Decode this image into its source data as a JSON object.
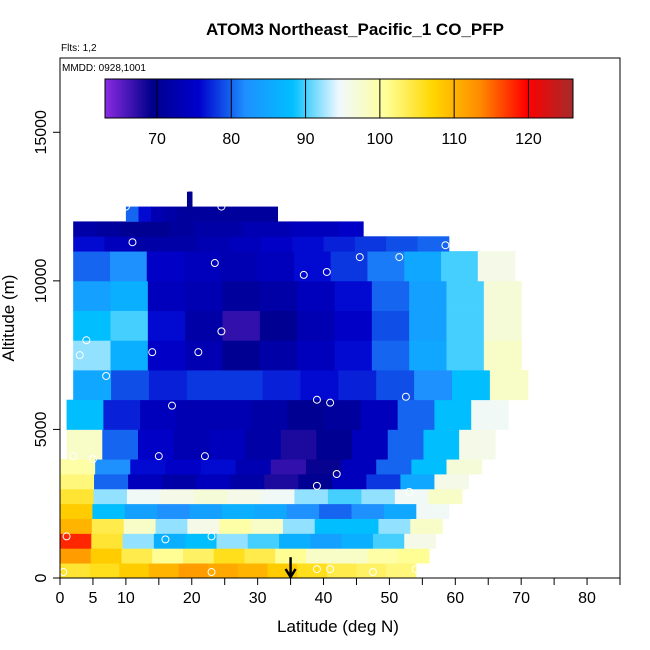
{
  "chart_data": {
    "type": "heatmap",
    "title": "ATOM3 Northeast_Pacific_1 CO_PFP",
    "flights_label": "Flts: 1,2",
    "dates_label": "MMDD: 0928,1001",
    "xlabel": "Latitude (deg N)",
    "ylabel": "Altitude (m)",
    "xlim": [
      0,
      85
    ],
    "ylim": [
      0,
      17500
    ],
    "x_ticks": [
      0,
      5,
      10,
      20,
      30,
      40,
      50,
      60,
      70,
      80
    ],
    "y_ticks": [
      0,
      5000,
      10000,
      15000
    ],
    "colorbar": {
      "min": 63,
      "max": 126,
      "ticks": [
        70,
        80,
        90,
        100,
        110,
        120
      ],
      "colors": [
        "#8a2be2",
        "#00008b",
        "#0000cd",
        "#1e90ff",
        "#00bfff",
        "#f0f8ff",
        "#ffff99",
        "#ffd700",
        "#ff8c00",
        "#ff0000",
        "#a52a2a"
      ]
    },
    "layers": [
      {
        "alt": [
          0,
          500
        ],
        "lat": [
          0,
          54
        ],
        "values": [
          105,
          106,
          108,
          110,
          112,
          111,
          110,
          108,
          106,
          104,
          103,
          102
        ]
      },
      {
        "alt": [
          500,
          1000
        ],
        "lat": [
          0,
          56
        ],
        "values": [
          112,
          108,
          104,
          101,
          103,
          106,
          104,
          101,
          98,
          98,
          100,
          101
        ]
      },
      {
        "alt": [
          1000,
          1500
        ],
        "lat": [
          0,
          57
        ],
        "values": [
          118,
          105,
          92,
          86,
          88,
          92,
          90,
          86,
          84,
          86,
          90,
          96
        ]
      },
      {
        "alt": [
          1500,
          2000
        ],
        "lat": [
          0,
          58
        ],
        "values": [
          110,
          104,
          98,
          92,
          96,
          100,
          98,
          92,
          88,
          88,
          92,
          98
        ]
      },
      {
        "alt": [
          2000,
          2500
        ],
        "lat": [
          0,
          59
        ],
        "values": [
          108,
          88,
          84,
          82,
          84,
          86,
          85,
          82,
          80,
          82,
          85,
          95
        ]
      },
      {
        "alt": [
          2500,
          3000
        ],
        "lat": [
          0,
          61
        ],
        "values": [
          105,
          92,
          95,
          96,
          97,
          96,
          95,
          92,
          90,
          92,
          95,
          98
        ]
      },
      {
        "alt": [
          3000,
          3500
        ],
        "lat": [
          0,
          62
        ],
        "values": [
          102,
          80,
          74,
          72,
          74,
          72,
          68,
          70,
          74,
          78,
          85,
          96
        ]
      },
      {
        "alt": [
          3500,
          4000
        ],
        "lat": [
          0,
          64
        ],
        "values": [
          100,
          82,
          76,
          75,
          76,
          73,
          67,
          69,
          74,
          80,
          88,
          97
        ]
      },
      {
        "alt": [
          4000,
          5000
        ],
        "lat": [
          1,
          66
        ],
        "values": [
          98,
          80,
          75,
          73,
          74,
          72,
          68,
          70,
          74,
          80,
          88,
          96
        ]
      },
      {
        "alt": [
          5000,
          6000
        ],
        "lat": [
          1,
          68
        ],
        "values": [
          88,
          77,
          74,
          73,
          73,
          72,
          70,
          71,
          74,
          80,
          88,
          95
        ]
      },
      {
        "alt": [
          6000,
          7000
        ],
        "lat": [
          2,
          71
        ],
        "values": [
          85,
          79,
          77,
          78,
          78,
          77,
          76,
          77,
          79,
          82,
          88,
          98
        ]
      },
      {
        "alt": [
          7000,
          8000
        ],
        "lat": [
          2,
          70
        ],
        "values": [
          92,
          86,
          75,
          73,
          70,
          72,
          74,
          76,
          80,
          85,
          90,
          98
        ]
      },
      {
        "alt": [
          8000,
          9000
        ],
        "lat": [
          2,
          70
        ],
        "values": [
          88,
          90,
          76,
          72,
          67,
          70,
          73,
          75,
          79,
          84,
          90,
          97
        ]
      },
      {
        "alt": [
          9000,
          10000
        ],
        "lat": [
          2,
          70
        ],
        "values": [
          84,
          86,
          74,
          73,
          71,
          72,
          74,
          76,
          80,
          84,
          90,
          97
        ]
      },
      {
        "alt": [
          10000,
          11000
        ],
        "lat": [
          2,
          69
        ],
        "values": [
          80,
          82,
          75,
          74,
          73,
          74,
          76,
          78,
          81,
          85,
          90,
          96
        ]
      },
      {
        "alt": [
          11000,
          11500
        ],
        "lat": [
          2,
          59
        ],
        "values": [
          76,
          74,
          72,
          72,
          73,
          74,
          75,
          76,
          77,
          78,
          79,
          80
        ]
      },
      {
        "alt": [
          11500,
          12000
        ],
        "lat": [
          2,
          46
        ],
        "values": [
          72,
          71,
          70,
          70,
          71,
          72,
          72,
          73,
          73,
          74,
          74,
          75
        ]
      },
      {
        "alt": [
          12000,
          12500
        ],
        "lat": [
          10,
          33
        ],
        "values": [
          80,
          76,
          73,
          72,
          71,
          71,
          71,
          71,
          71,
          71,
          71,
          71
        ]
      },
      {
        "alt": [
          12500,
          13000
        ],
        "lat": [
          19.5,
          20
        ],
        "values": [
          70,
          70,
          70,
          70,
          70,
          70,
          70,
          70,
          70,
          70,
          70,
          70
        ]
      }
    ],
    "samples": [
      {
        "lat": 0.5,
        "alt": 200
      },
      {
        "lat": 1,
        "alt": 1400
      },
      {
        "lat": 2,
        "alt": 4100
      },
      {
        "lat": 3,
        "alt": 7500
      },
      {
        "lat": 4,
        "alt": 8000
      },
      {
        "lat": 5,
        "alt": 4000
      },
      {
        "lat": 7,
        "alt": 6800
      },
      {
        "lat": 10,
        "alt": 12500
      },
      {
        "lat": 11,
        "alt": 11300
      },
      {
        "lat": 14,
        "alt": 7600
      },
      {
        "lat": 15,
        "alt": 4100
      },
      {
        "lat": 16,
        "alt": 1300
      },
      {
        "lat": 17,
        "alt": 5800
      },
      {
        "lat": 21,
        "alt": 7600
      },
      {
        "lat": 22,
        "alt": 4100
      },
      {
        "lat": 23,
        "alt": 1400
      },
      {
        "lat": 23,
        "alt": 200
      },
      {
        "lat": 23.5,
        "alt": 10600
      },
      {
        "lat": 24.5,
        "alt": 8300
      },
      {
        "lat": 24.5,
        "alt": 12500
      },
      {
        "lat": 37,
        "alt": 10200
      },
      {
        "lat": 39,
        "alt": 6000
      },
      {
        "lat": 39,
        "alt": 3100
      },
      {
        "lat": 39,
        "alt": 300
      },
      {
        "lat": 40.5,
        "alt": 10300
      },
      {
        "lat": 41,
        "alt": 5900
      },
      {
        "lat": 41,
        "alt": 300
      },
      {
        "lat": 42,
        "alt": 3500
      },
      {
        "lat": 45.5,
        "alt": 10800
      },
      {
        "lat": 47.5,
        "alt": 200
      },
      {
        "lat": 51.5,
        "alt": 10800
      },
      {
        "lat": 52.5,
        "alt": 6100
      },
      {
        "lat": 53,
        "alt": 2900
      },
      {
        "lat": 54,
        "alt": 300
      },
      {
        "lat": 58.5,
        "alt": 11200
      }
    ],
    "markers": [
      {
        "lat": 35,
        "alt_from": 700,
        "alt_to": 0,
        "type": "arrow"
      },
      {
        "lat": 19.5,
        "alt_from": 13000,
        "alt_to": 12400,
        "type": "bar"
      }
    ]
  }
}
